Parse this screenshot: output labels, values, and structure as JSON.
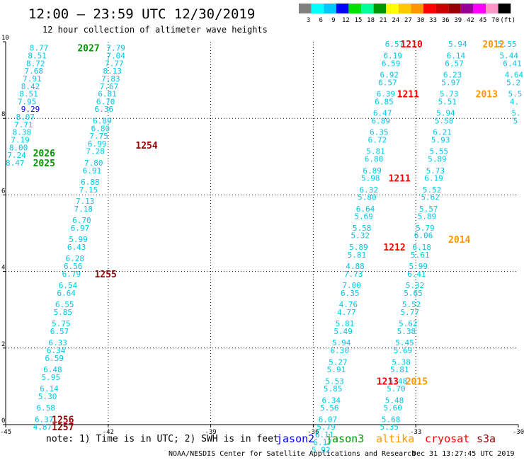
{
  "title": "12:00 – 23:59 UTC 12/30/2019",
  "subtitle": "12 hour collection of altimeter wave heights",
  "note": "note: 1) Time is in UTC; 2) SWH is in feet",
  "footer_left": "NOAA/NESDIS Center for Satellite Applications and Research",
  "footer_right": "Dec 31 13:27:45 UTC 2019",
  "color_scale": {
    "labels": [
      "3",
      "6",
      "9",
      "12",
      "15",
      "18",
      "21",
      "24",
      "27",
      "30",
      "33",
      "36",
      "39",
      "42",
      "45",
      "70",
      "(ft)"
    ],
    "colors": [
      "#808080",
      "#00ffff",
      "#00c8ff",
      "#0000ff",
      "#00e000",
      "#00ff96",
      "#009600",
      "#ffff00",
      "#ffc800",
      "#ff9600",
      "#ff0000",
      "#c80000",
      "#960000",
      "#960096",
      "#ff00ff",
      "#ff96c8",
      "#000000"
    ]
  },
  "satellites": [
    {
      "name": "jason2",
      "color": "#0000ff"
    },
    {
      "name": "jason3",
      "color": "#009600"
    },
    {
      "name": "altika",
      "color": "#ff9600"
    },
    {
      "name": "cryosat",
      "color": "#ff0000"
    },
    {
      "name": "s3a",
      "color": "#960000"
    }
  ],
  "chart_data": {
    "type": "scatter",
    "xlabel": "",
    "ylabel": "",
    "xlim": [
      -45,
      -30
    ],
    "ylim": [
      0,
      10
    ],
    "x_ticks": [
      "-45",
      "-42",
      "-39",
      "-36",
      "-33",
      "-30"
    ],
    "y_ticks": [
      "0",
      "2",
      "4",
      "6",
      "8",
      "10"
    ],
    "grid": true,
    "series": [
      {
        "name": "jason3",
        "points": [
          {
            "x": -44.3,
            "y": 9.84,
            "v": "8.77"
          },
          {
            "x": -44.35,
            "y": 9.64,
            "v": "8.51"
          },
          {
            "x": -44.4,
            "y": 9.44,
            "v": "8.72"
          },
          {
            "x": -44.45,
            "y": 9.24,
            "v": "7.68"
          },
          {
            "x": -44.5,
            "y": 9.04,
            "v": "7.91"
          },
          {
            "x": -44.55,
            "y": 8.84,
            "v": "8.42"
          },
          {
            "x": -44.6,
            "y": 8.64,
            "v": "8.51"
          },
          {
            "x": -44.65,
            "y": 8.44,
            "v": "7.95"
          },
          {
            "x": -44.7,
            "y": 8.04,
            "v": "8.07"
          },
          {
            "x": -44.75,
            "y": 7.84,
            "v": "7.71"
          },
          {
            "x": -44.8,
            "y": 7.64,
            "v": "8.38"
          },
          {
            "x": -44.85,
            "y": 7.44,
            "v": "7.19"
          },
          {
            "x": -44.9,
            "y": 7.24,
            "v": "8.00"
          },
          {
            "x": -44.95,
            "y": 7.04,
            "v": "7.24"
          },
          {
            "x": -45.0,
            "y": 6.84,
            "v": "8.47"
          }
        ]
      },
      {
        "name": "jason3b",
        "points": [
          {
            "x": -44.55,
            "y": 8.24,
            "v": "9.29",
            "c": "#0000ff"
          }
        ]
      },
      {
        "name": "s3a-track",
        "points": [
          {
            "x": -42.05,
            "y": 9.84,
            "v": "7.79"
          },
          {
            "x": -42.05,
            "y": 9.64,
            "v": "7.04"
          },
          {
            "x": -42.1,
            "y": 9.44,
            "v": "7.77"
          },
          {
            "x": -42.15,
            "y": 9.24,
            "v": "8.13"
          },
          {
            "x": -42.2,
            "y": 9.04,
            "v": "7.83"
          },
          {
            "x": -42.25,
            "y": 8.84,
            "v": "7.67"
          },
          {
            "x": -42.3,
            "y": 8.64,
            "v": "6.81"
          },
          {
            "x": -42.35,
            "y": 8.44,
            "v": "6.70"
          },
          {
            "x": -42.4,
            "y": 8.24,
            "v": "6.36"
          },
          {
            "x": -42.45,
            "y": 7.94,
            "v": "6.89"
          },
          {
            "x": -42.5,
            "y": 7.74,
            "v": "6.80"
          },
          {
            "x": -42.55,
            "y": 7.54,
            "v": "7.75"
          },
          {
            "x": -42.6,
            "y": 7.34,
            "v": "6.99"
          },
          {
            "x": -42.65,
            "y": 7.14,
            "v": "7.28"
          },
          {
            "x": -42.7,
            "y": 6.84,
            "v": "7.80"
          },
          {
            "x": -42.75,
            "y": 6.64,
            "v": "6.91"
          },
          {
            "x": -42.8,
            "y": 6.34,
            "v": "6.88"
          },
          {
            "x": -42.85,
            "y": 6.14,
            "v": "7.15"
          },
          {
            "x": -42.95,
            "y": 5.84,
            "v": "7.13"
          },
          {
            "x": -43.0,
            "y": 5.64,
            "v": "7.18"
          },
          {
            "x": -43.05,
            "y": 5.34,
            "v": "6.70"
          },
          {
            "x": -43.1,
            "y": 5.14,
            "v": "6.97"
          },
          {
            "x": -43.15,
            "y": 4.84,
            "v": "5.99"
          },
          {
            "x": -43.2,
            "y": 4.64,
            "v": "6.43"
          },
          {
            "x": -43.25,
            "y": 4.34,
            "v": "6.28"
          },
          {
            "x": -43.3,
            "y": 4.14,
            "v": "6.56"
          },
          {
            "x": -43.35,
            "y": 3.94,
            "v": "6.79"
          },
          {
            "x": -43.45,
            "y": 3.64,
            "v": "6.54"
          },
          {
            "x": -43.5,
            "y": 3.44,
            "v": "6.64"
          },
          {
            "x": -43.55,
            "y": 3.14,
            "v": "6.55"
          },
          {
            "x": -43.6,
            "y": 2.94,
            "v": "5.85"
          },
          {
            "x": -43.65,
            "y": 2.64,
            "v": "5.75"
          },
          {
            "x": -43.7,
            "y": 2.44,
            "v": "6.57"
          },
          {
            "x": -43.75,
            "y": 2.14,
            "v": "6.33"
          },
          {
            "x": -43.8,
            "y": 1.94,
            "v": "6.34"
          },
          {
            "x": -43.85,
            "y": 1.74,
            "v": "6.59"
          },
          {
            "x": -43.9,
            "y": 1.44,
            "v": "6.48"
          },
          {
            "x": -43.95,
            "y": 1.24,
            "v": "5.95"
          },
          {
            "x": -44.0,
            "y": 0.94,
            "v": "6.14"
          },
          {
            "x": -44.05,
            "y": 0.74,
            "v": "5.30"
          },
          {
            "x": -44.1,
            "y": 0.44,
            "v": "6.58"
          },
          {
            "x": -44.15,
            "y": 0.14,
            "v": "6.37"
          },
          {
            "x": -44.2,
            "y": -0.06,
            "v": "4.87"
          }
        ]
      },
      {
        "name": "jason2-track",
        "points": [
          {
            "x": -33.9,
            "y": 9.94,
            "v": "6.57"
          },
          {
            "x": -33.95,
            "y": 9.64,
            "v": "6.19"
          },
          {
            "x": -34.0,
            "y": 9.44,
            "v": "6.59"
          },
          {
            "x": -34.05,
            "y": 9.14,
            "v": "6.92"
          },
          {
            "x": -34.1,
            "y": 8.94,
            "v": "6.57"
          },
          {
            "x": -34.15,
            "y": 8.64,
            "v": "6.39"
          },
          {
            "x": -34.2,
            "y": 8.44,
            "v": "6.85"
          },
          {
            "x": -34.25,
            "y": 8.14,
            "v": "6.47"
          },
          {
            "x": -34.3,
            "y": 7.94,
            "v": "6.89"
          },
          {
            "x": -34.35,
            "y": 7.64,
            "v": "6.35"
          },
          {
            "x": -34.4,
            "y": 7.44,
            "v": "6.72"
          },
          {
            "x": -34.45,
            "y": 7.14,
            "v": "5.81"
          },
          {
            "x": -34.5,
            "y": 6.94,
            "v": "6.80"
          },
          {
            "x": -34.55,
            "y": 6.64,
            "v": "6.89"
          },
          {
            "x": -34.6,
            "y": 6.44,
            "v": "5.98"
          },
          {
            "x": -34.65,
            "y": 6.14,
            "v": "6.32"
          },
          {
            "x": -34.7,
            "y": 5.94,
            "v": "5.80"
          },
          {
            "x": -34.75,
            "y": 5.64,
            "v": "6.64"
          },
          {
            "x": -34.8,
            "y": 5.44,
            "v": "5.69"
          },
          {
            "x": -34.85,
            "y": 5.14,
            "v": "5.58"
          },
          {
            "x": -34.9,
            "y": 4.94,
            "v": "5.32"
          },
          {
            "x": -34.95,
            "y": 4.64,
            "v": "5.89"
          },
          {
            "x": -35.0,
            "y": 4.44,
            "v": "5.81"
          },
          {
            "x": -35.05,
            "y": 4.14,
            "v": "4.88"
          },
          {
            "x": -35.1,
            "y": 3.94,
            "v": "7.73"
          },
          {
            "x": -35.15,
            "y": 3.64,
            "v": "7.00"
          },
          {
            "x": -35.2,
            "y": 3.44,
            "v": "6.35"
          },
          {
            "x": -35.25,
            "y": 3.14,
            "v": "4.76"
          },
          {
            "x": -35.3,
            "y": 2.94,
            "v": "4.77"
          },
          {
            "x": -35.35,
            "y": 2.64,
            "v": "5.81"
          },
          {
            "x": -35.4,
            "y": 2.44,
            "v": "5.49"
          },
          {
            "x": -35.45,
            "y": 2.14,
            "v": "5.94"
          },
          {
            "x": -35.5,
            "y": 1.94,
            "v": "6.30"
          },
          {
            "x": -35.55,
            "y": 1.64,
            "v": "5.27"
          },
          {
            "x": -35.6,
            "y": 1.44,
            "v": "5.91"
          },
          {
            "x": -35.65,
            "y": 1.14,
            "v": "5.53"
          },
          {
            "x": -35.7,
            "y": 0.94,
            "v": "5.85"
          },
          {
            "x": -35.75,
            "y": 0.64,
            "v": "6.34"
          },
          {
            "x": -35.8,
            "y": 0.44,
            "v": "5.56"
          },
          {
            "x": -35.85,
            "y": 0.14,
            "v": "6.07"
          },
          {
            "x": -35.9,
            "y": -0.06,
            "v": "5.79"
          },
          {
            "x": -35.95,
            "y": -0.26,
            "v": "6.11"
          },
          {
            "x": -36.0,
            "y": -0.46,
            "v": "6.17"
          },
          {
            "x": -36.05,
            "y": -0.66,
            "v": "5.92"
          }
        ]
      },
      {
        "name": "altika-track",
        "points": [
          {
            "x": -32.05,
            "y": 9.94,
            "v": "5.94"
          },
          {
            "x": -32.1,
            "y": 9.64,
            "v": "6.14"
          },
          {
            "x": -32.15,
            "y": 9.44,
            "v": "6.57"
          },
          {
            "x": -32.2,
            "y": 9.14,
            "v": "6.23"
          },
          {
            "x": -32.25,
            "y": 8.94,
            "v": "5.97"
          },
          {
            "x": -32.3,
            "y": 8.64,
            "v": "5.73"
          },
          {
            "x": -32.35,
            "y": 8.44,
            "v": "5.51"
          },
          {
            "x": -32.4,
            "y": 8.14,
            "v": "5.94"
          },
          {
            "x": -32.45,
            "y": 7.94,
            "v": "5.58"
          },
          {
            "x": -32.5,
            "y": 7.64,
            "v": "6.21"
          },
          {
            "x": -32.55,
            "y": 7.44,
            "v": "5.93"
          },
          {
            "x": -32.6,
            "y": 7.14,
            "v": "5.55"
          },
          {
            "x": -32.65,
            "y": 6.94,
            "v": "5.89"
          },
          {
            "x": -32.7,
            "y": 6.64,
            "v": "5.73"
          },
          {
            "x": -32.75,
            "y": 6.44,
            "v": "6.19"
          },
          {
            "x": -32.8,
            "y": 6.14,
            "v": "5.52"
          },
          {
            "x": -32.85,
            "y": 5.94,
            "v": "5.62"
          },
          {
            "x": -32.9,
            "y": 5.64,
            "v": "5.57"
          },
          {
            "x": -32.95,
            "y": 5.44,
            "v": "5.89"
          },
          {
            "x": -33.0,
            "y": 5.14,
            "v": "5.79"
          },
          {
            "x": -33.05,
            "y": 4.94,
            "v": "6.06"
          },
          {
            "x": -33.1,
            "y": 4.64,
            "v": "6.18"
          },
          {
            "x": -33.15,
            "y": 4.44,
            "v": "5.61"
          },
          {
            "x": -33.2,
            "y": 4.14,
            "v": "5.99"
          },
          {
            "x": -33.25,
            "y": 3.94,
            "v": "6.41"
          },
          {
            "x": -33.3,
            "y": 3.64,
            "v": "5.32"
          },
          {
            "x": -33.35,
            "y": 3.44,
            "v": "5.65"
          },
          {
            "x": -33.4,
            "y": 3.14,
            "v": "5.52"
          },
          {
            "x": -33.45,
            "y": 2.94,
            "v": "5.77"
          },
          {
            "x": -33.5,
            "y": 2.64,
            "v": "5.62"
          },
          {
            "x": -33.55,
            "y": 2.44,
            "v": "5.38"
          },
          {
            "x": -33.6,
            "y": 2.14,
            "v": "5.45"
          },
          {
            "x": -33.65,
            "y": 1.94,
            "v": "5.69"
          },
          {
            "x": -33.7,
            "y": 1.64,
            "v": "5.38"
          },
          {
            "x": -33.75,
            "y": 1.44,
            "v": "5.81"
          },
          {
            "x": -33.8,
            "y": 1.14,
            "v": "5.48"
          },
          {
            "x": -33.85,
            "y": 0.94,
            "v": "5.70"
          },
          {
            "x": -33.9,
            "y": 0.64,
            "v": "5.48"
          },
          {
            "x": -33.95,
            "y": 0.44,
            "v": "5.60"
          },
          {
            "x": -34.0,
            "y": 0.14,
            "v": "5.68"
          },
          {
            "x": -34.05,
            "y": -0.06,
            "v": "5.35"
          }
        ]
      },
      {
        "name": "edge-track",
        "points": [
          {
            "x": -30.6,
            "y": 9.94,
            "v": "5.55"
          },
          {
            "x": -30.55,
            "y": 9.64,
            "v": "5.44"
          },
          {
            "x": -30.45,
            "y": 9.44,
            "v": "6.41"
          },
          {
            "x": -30.4,
            "y": 9.14,
            "v": "4.64"
          },
          {
            "x": -30.35,
            "y": 8.94,
            "v": "5.2"
          },
          {
            "x": -30.3,
            "y": 8.64,
            "v": "5.5"
          },
          {
            "x": -30.25,
            "y": 8.44,
            "v": "4."
          },
          {
            "x": -30.2,
            "y": 8.14,
            "v": "5."
          },
          {
            "x": -30.15,
            "y": 7.94,
            "v": "5"
          }
        ]
      }
    ],
    "pass_labels": [
      {
        "text": "2027",
        "x": -42.9,
        "y": 9.84,
        "color": "#009600"
      },
      {
        "text": "2026",
        "x": -44.2,
        "y": 7.1,
        "color": "#009600"
      },
      {
        "text": "2025",
        "x": -44.2,
        "y": 6.84,
        "color": "#009600"
      },
      {
        "text": "1254",
        "x": -41.2,
        "y": 7.3,
        "color": "#960000"
      },
      {
        "text": "1255",
        "x": -42.4,
        "y": 3.94,
        "color": "#960000"
      },
      {
        "text": "1256",
        "x": -43.65,
        "y": 0.14,
        "color": "#960000"
      },
      {
        "text": "1257",
        "x": -43.65,
        "y": -0.06,
        "color": "#960000"
      },
      {
        "text": "1210",
        "x": -33.45,
        "y": 9.94,
        "color": "#ff0000"
      },
      {
        "text": "1211",
        "x": -33.55,
        "y": 8.64,
        "color": "#ff0000"
      },
      {
        "text": "1211",
        "x": -33.8,
        "y": 6.44,
        "color": "#ff0000"
      },
      {
        "text": "1212",
        "x": -33.95,
        "y": 4.64,
        "color": "#ff0000"
      },
      {
        "text": "1213",
        "x": -34.15,
        "y": 1.14,
        "color": "#ff0000"
      },
      {
        "text": "2012",
        "x": -31.05,
        "y": 9.94,
        "color": "#ff9600"
      },
      {
        "text": "2013",
        "x": -31.25,
        "y": 8.64,
        "color": "#ff9600"
      },
      {
        "text": "2014",
        "x": -32.05,
        "y": 4.84,
        "color": "#ff9600"
      },
      {
        "text": "2015",
        "x": -33.3,
        "y": 1.14,
        "color": "#ff9600"
      }
    ]
  }
}
